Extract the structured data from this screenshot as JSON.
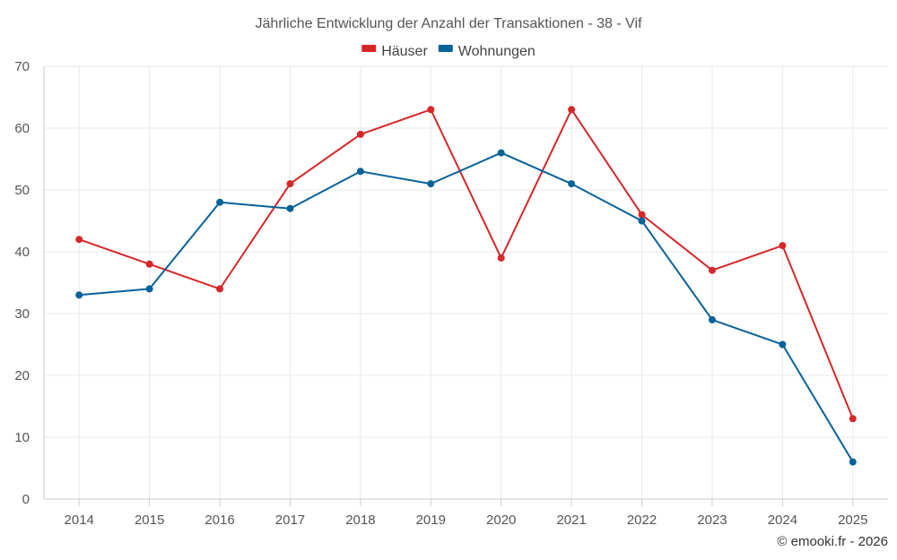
{
  "chart_data": {
    "type": "line",
    "title": "Jährliche Entwicklung der Anzahl der Transaktionen - 38 - Vif",
    "categories": [
      "2014",
      "2015",
      "2016",
      "2017",
      "2018",
      "2019",
      "2020",
      "2021",
      "2022",
      "2023",
      "2024",
      "2025"
    ],
    "series": [
      {
        "name": "Häuser",
        "color": "#d62728",
        "values": [
          42,
          38,
          34,
          51,
          59,
          63,
          39,
          63,
          46,
          37,
          41,
          13
        ]
      },
      {
        "name": "Wohnungen",
        "color": "#07629a",
        "values": [
          33,
          34,
          48,
          47,
          53,
          51,
          56,
          51,
          45,
          29,
          25,
          6
        ]
      }
    ],
    "ylim": [
      0,
      70
    ],
    "yticks": [
      0,
      10,
      20,
      30,
      40,
      50,
      60,
      70
    ],
    "xlabel": "",
    "ylabel": "",
    "grid": true,
    "legend": "top-center"
  },
  "credit": "© emooki.fr - 2026"
}
